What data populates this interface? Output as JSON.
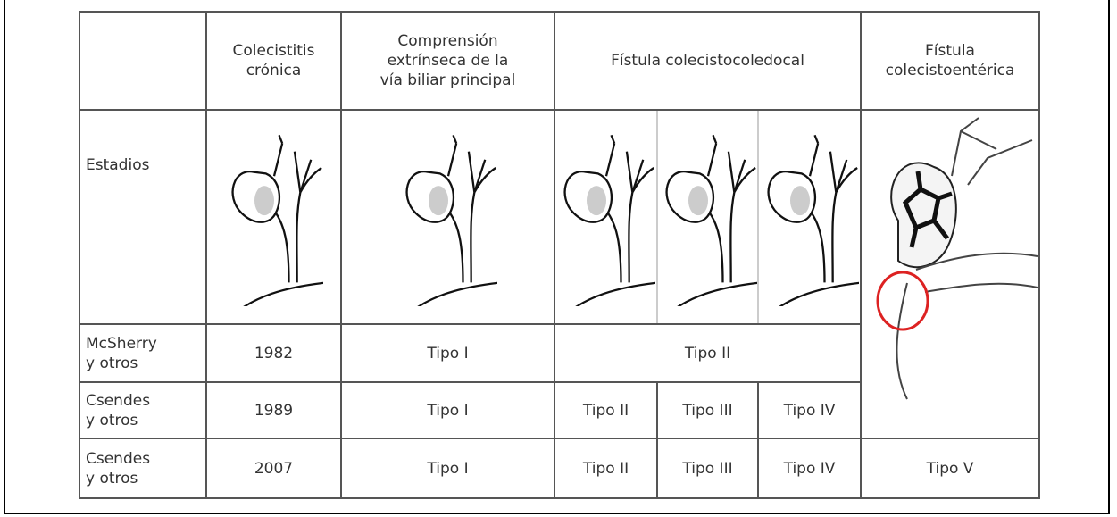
{
  "header": {
    "col1": [
      "Colecistitis",
      "crónica"
    ],
    "col2": [
      "Comprensión",
      "extrínseca de la",
      "vía biliar principal"
    ],
    "col3": [
      "Fístula colecistocoledocal"
    ],
    "col4": [
      "Fístula",
      "colecistoentérica"
    ]
  },
  "rows": [
    {
      "label": [
        "Estadios"
      ]
    },
    {
      "label": [
        "McSherry",
        "y otros"
      ],
      "cells": [
        "1982",
        "Tipo I",
        "Tipo II"
      ]
    },
    {
      "label": [
        "Csendes",
        "y otros"
      ],
      "cells": [
        "1989",
        "Tipo I",
        "Tipo II",
        "Tipo III",
        "Tipo IV"
      ]
    },
    {
      "label": [
        "Csendes",
        "y otros"
      ],
      "cells": [
        "2007",
        "Tipo I",
        "Tipo II",
        "Tipo III",
        "Tipo IV",
        "Tipo V"
      ]
    }
  ]
}
